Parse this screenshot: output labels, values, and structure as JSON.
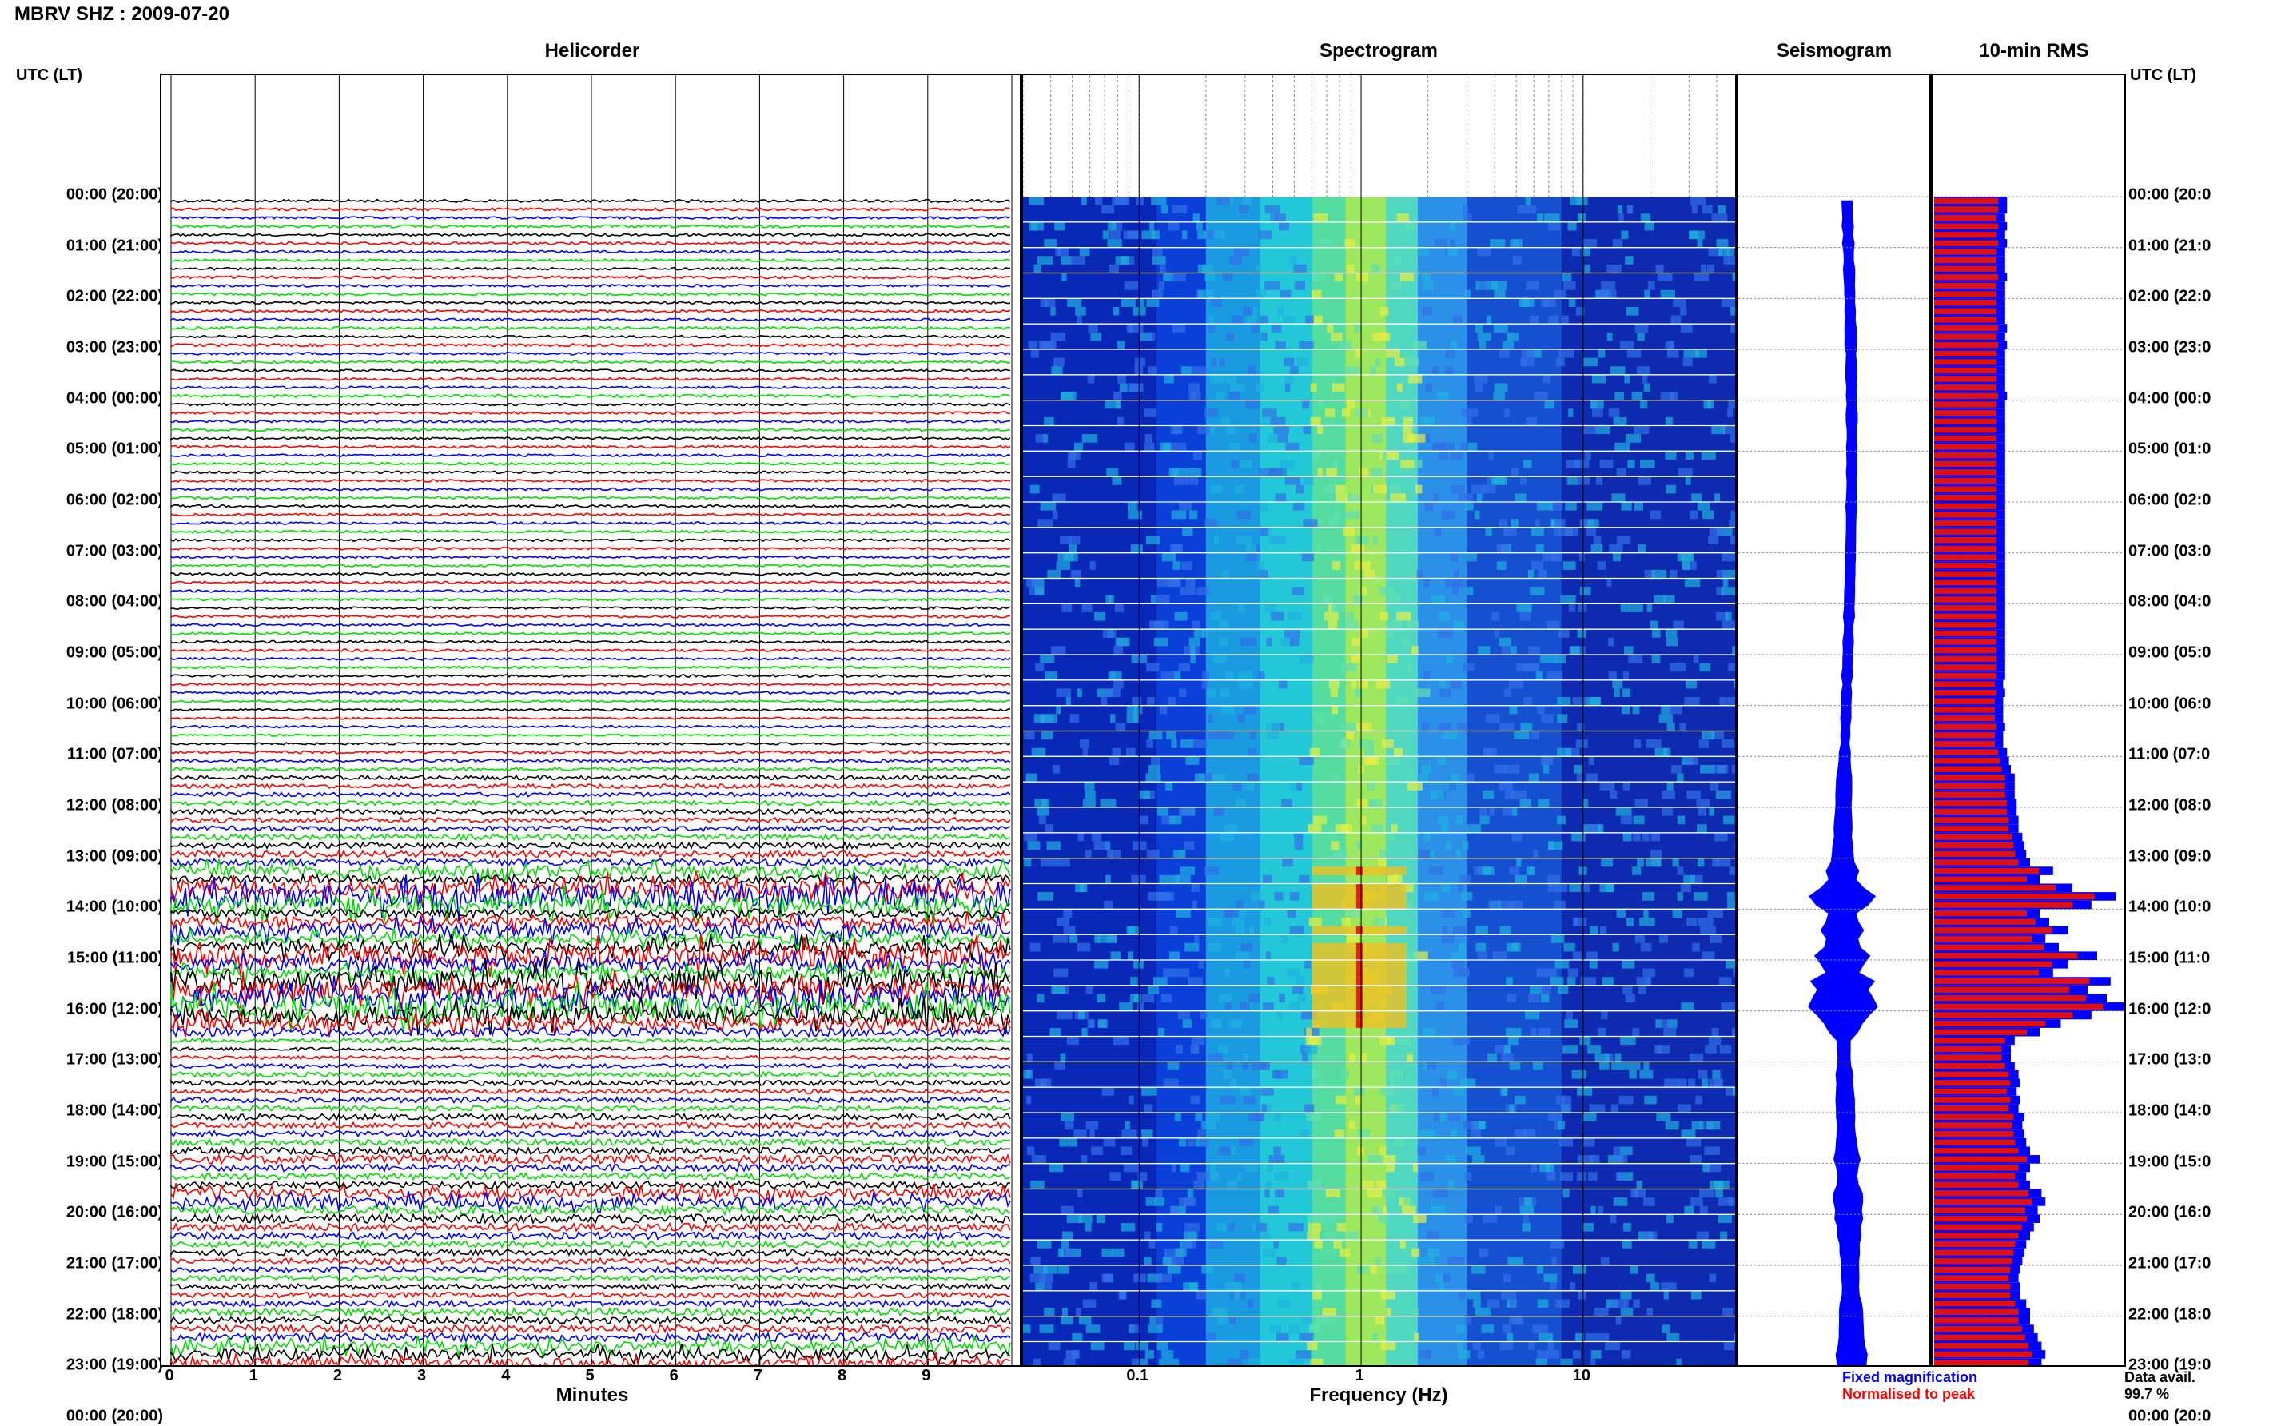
{
  "header": {
    "station": "MBRV SHZ : 2009-07-20"
  },
  "panels": {
    "helicorder": {
      "title": "Helicorder",
      "xlabel": "Minutes",
      "ticks": [
        "0",
        "1",
        "2",
        "3",
        "4",
        "5",
        "6",
        "7",
        "8",
        "9"
      ]
    },
    "spectrogram": {
      "title": "Spectrogram",
      "xlabel": "Frequency (Hz)",
      "ticks": [
        "0.1",
        "1",
        "10"
      ],
      "xscale": "log",
      "xrange": [
        0.03,
        50
      ]
    },
    "seismogram": {
      "title": "Seismogram"
    },
    "rms": {
      "title": "10-min RMS"
    }
  },
  "axis": {
    "left_header": "UTC (LT)",
    "right_header": "UTC (LT)",
    "time_labels": [
      "00:00 (20:00)",
      "01:00 (21:00)",
      "02:00 (22:00)",
      "03:00 (23:00)",
      "04:00 (00:00)",
      "05:00 (01:00)",
      "06:00 (02:00)",
      "07:00 (03:00)",
      "08:00 (04:00)",
      "09:00 (05:00)",
      "10:00 (06:00)",
      "11:00 (07:00)",
      "12:00 (08:00)",
      "13:00 (09:00)",
      "14:00 (10:00)",
      "15:00 (11:00)",
      "16:00 (12:00)",
      "17:00 (13:00)",
      "18:00 (14:00)",
      "19:00 (15:00)",
      "20:00 (16:00)",
      "21:00 (17:00)",
      "22:00 (18:00)",
      "23:00 (19:00)",
      "00:00 (20:00)"
    ],
    "right_time_labels": [
      "00:00 (20:0",
      "01:00 (21:0",
      "02:00 (22:0",
      "03:00 (23:0",
      "04:00 (00:0",
      "05:00 (01:0",
      "06:00 (02:0",
      "07:00 (03:0",
      "08:00 (04:0",
      "09:00 (05:0",
      "10:00 (06:0",
      "11:00 (07:0",
      "12:00 (08:0",
      "13:00 (09:0",
      "14:00 (10:0",
      "15:00 (11:0",
      "16:00 (12:0",
      "17:00 (13:0",
      "18:00 (14:0",
      "19:00 (15:0",
      "20:00 (16:0",
      "21:00 (17:0",
      "22:00 (18:0",
      "23:00 (19:0",
      "00:00 (20:0"
    ]
  },
  "legend": {
    "fixed": "Fixed magnification",
    "normalised": "Normalised to peak",
    "fixed_color": "#0000ff",
    "normalised_color": "#ff0000"
  },
  "availability": {
    "label": "Data avail.",
    "value": "99.7 %"
  },
  "colors": {
    "trace_cycle": [
      "#000000",
      "#ff0000",
      "#0000ff",
      "#00dd00"
    ]
  },
  "chart_data": {
    "type": "heatmap",
    "rms_relative": [
      0.38,
      0.38,
      0.37,
      0.38,
      0.37,
      0.38,
      0.37,
      0.37,
      0.37,
      0.38,
      0.37,
      0.37,
      0.37,
      0.37,
      0.37,
      0.38,
      0.37,
      0.38,
      0.37,
      0.37,
      0.37,
      0.37,
      0.37,
      0.38,
      0.37,
      0.37,
      0.37,
      0.37,
      0.37,
      0.37,
      0.37,
      0.37,
      0.37,
      0.37,
      0.37,
      0.37,
      0.37,
      0.37,
      0.37,
      0.37,
      0.37,
      0.37,
      0.37,
      0.37,
      0.37,
      0.37,
      0.37,
      0.37,
      0.37,
      0.37,
      0.37,
      0.37,
      0.37,
      0.37,
      0.37,
      0.37,
      0.37,
      0.36,
      0.37,
      0.36,
      0.36,
      0.36,
      0.37,
      0.36,
      0.36,
      0.38,
      0.39,
      0.4,
      0.42,
      0.42,
      0.42,
      0.43,
      0.43,
      0.44,
      0.44,
      0.46,
      0.47,
      0.48,
      0.5,
      0.62,
      0.55,
      0.72,
      0.95,
      0.82,
      0.55,
      0.6,
      0.7,
      0.58,
      0.65,
      0.85,
      0.7,
      0.62,
      0.92,
      0.8,
      0.9,
      1.0,
      0.82,
      0.66,
      0.55,
      0.42,
      0.4,
      0.4,
      0.42,
      0.44,
      0.45,
      0.43,
      0.45,
      0.44,
      0.47,
      0.46,
      0.47,
      0.48,
      0.5,
      0.55,
      0.5,
      0.48,
      0.5,
      0.56,
      0.58,
      0.54,
      0.55,
      0.52,
      0.5,
      0.48,
      0.47,
      0.46,
      0.45,
      0.44,
      0.45,
      0.45,
      0.48,
      0.5,
      0.5,
      0.52,
      0.54,
      0.56,
      0.58,
      0.56,
      0.55,
      0.55,
      0.55,
      0.54,
      0.53,
      0.52
    ]
  }
}
